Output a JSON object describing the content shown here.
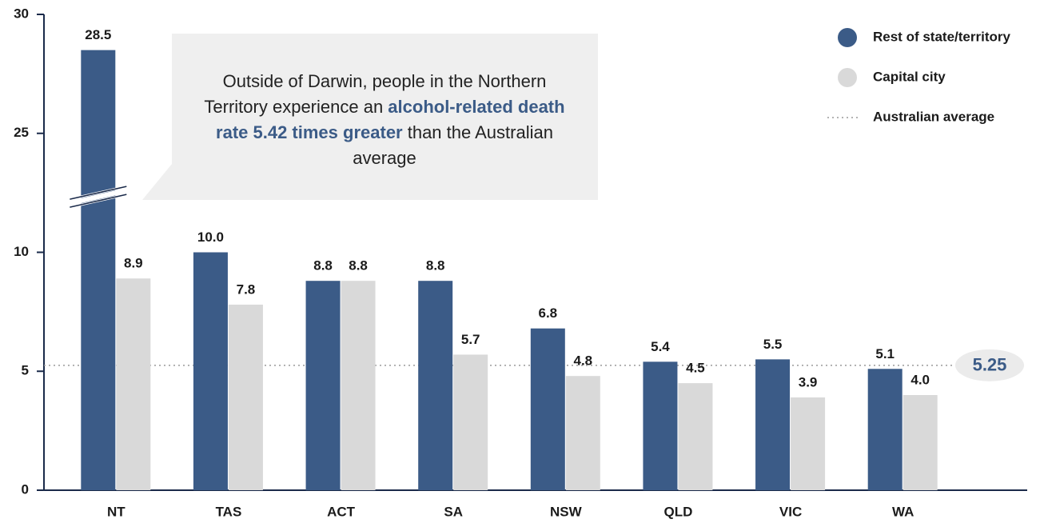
{
  "chart_data": {
    "type": "bar",
    "categories": [
      "NT",
      "TAS",
      "ACT",
      "SA",
      "NSW",
      "QLD",
      "VIC",
      "WA"
    ],
    "series": [
      {
        "name": "Rest of state/territory",
        "color": "#3b5b87",
        "values": [
          28.5,
          10.0,
          8.8,
          8.8,
          6.8,
          5.4,
          5.5,
          5.1
        ],
        "value_labels": [
          "28.5",
          "10.0",
          "8.8",
          "8.8",
          "6.8",
          "5.4",
          "5.5",
          "5.1"
        ]
      },
      {
        "name": "Capital city",
        "color": "#d9d9d9",
        "values": [
          8.9,
          7.8,
          8.8,
          5.7,
          4.8,
          4.5,
          3.9,
          4.0
        ],
        "value_labels": [
          "8.9",
          "7.8",
          "8.8",
          "5.7",
          "4.8",
          "4.5",
          "3.9",
          "4.0"
        ]
      }
    ],
    "reference": {
      "name": "Australian average",
      "value": 5.25,
      "color": "#9a9a9a"
    },
    "annotation": [
      "Outside of Darwin, people in the Northern Territory experience an ",
      "alcohol-related death rate 5.42 times greater",
      " than the Australian average"
    ],
    "ylim": [
      0,
      30
    ],
    "yticks": [
      0,
      5,
      10,
      25,
      30
    ],
    "axis_break": true,
    "grid": false
  }
}
